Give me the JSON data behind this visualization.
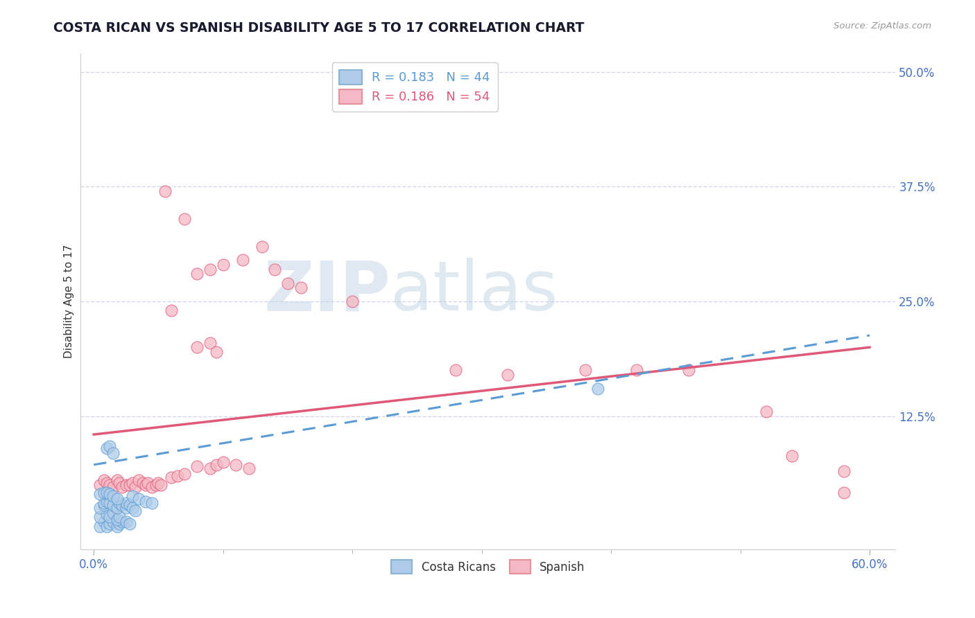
{
  "title": "COSTA RICAN VS SPANISH DISABILITY AGE 5 TO 17 CORRELATION CHART",
  "source": "Source: ZipAtlas.com",
  "xlabel_ticks_positions": [
    0.0,
    0.6
  ],
  "xlabel_ticks_labels": [
    "0.0%",
    "60.0%"
  ],
  "xlabel_minor_ticks": [
    0.1,
    0.2,
    0.3,
    0.4,
    0.5
  ],
  "ylabel": "Disability Age 5 to 17",
  "ylabel_ticks": [
    "12.5%",
    "25.0%",
    "37.5%",
    "50.0%"
  ],
  "ylabel_tick_vals": [
    0.125,
    0.25,
    0.375,
    0.5
  ],
  "xlim": [
    -0.01,
    0.62
  ],
  "ylim": [
    -0.02,
    0.52
  ],
  "cr_line_color": "#5b9bd5",
  "sp_line_color": "#e05878",
  "costa_rican_color": "#aecce8",
  "spanish_color": "#f5b8c4",
  "watermark_zip": "ZIP",
  "watermark_atlas": "atlas",
  "background_color": "#ffffff",
  "grid_color": "#d0d8e8",
  "title_color": "#1a1a2e",
  "source_color": "#999999",
  "tick_color": "#4472c4",
  "cr_line_start_y": 0.072,
  "cr_line_end_y": 0.213,
  "sp_line_start_y": 0.105,
  "sp_line_end_y": 0.2,
  "costa_rican_points": [
    [
      0.005,
      0.005
    ],
    [
      0.008,
      0.01
    ],
    [
      0.01,
      0.005
    ],
    [
      0.012,
      0.008
    ],
    [
      0.015,
      0.01
    ],
    [
      0.018,
      0.005
    ],
    [
      0.02,
      0.008
    ],
    [
      0.022,
      0.01
    ],
    [
      0.005,
      0.015
    ],
    [
      0.01,
      0.018
    ],
    [
      0.012,
      0.015
    ],
    [
      0.015,
      0.02
    ],
    [
      0.018,
      0.012
    ],
    [
      0.02,
      0.015
    ],
    [
      0.025,
      0.01
    ],
    [
      0.028,
      0.008
    ],
    [
      0.005,
      0.025
    ],
    [
      0.008,
      0.028
    ],
    [
      0.008,
      0.03
    ],
    [
      0.01,
      0.032
    ],
    [
      0.012,
      0.03
    ],
    [
      0.015,
      0.028
    ],
    [
      0.018,
      0.025
    ],
    [
      0.02,
      0.03
    ],
    [
      0.022,
      0.028
    ],
    [
      0.025,
      0.025
    ],
    [
      0.025,
      0.03
    ],
    [
      0.028,
      0.028
    ],
    [
      0.03,
      0.025
    ],
    [
      0.032,
      0.022
    ],
    [
      0.005,
      0.04
    ],
    [
      0.008,
      0.042
    ],
    [
      0.01,
      0.042
    ],
    [
      0.012,
      0.04
    ],
    [
      0.015,
      0.038
    ],
    [
      0.018,
      0.035
    ],
    [
      0.03,
      0.038
    ],
    [
      0.035,
      0.035
    ],
    [
      0.04,
      0.032
    ],
    [
      0.045,
      0.03
    ],
    [
      0.01,
      0.09
    ],
    [
      0.012,
      0.092
    ],
    [
      0.015,
      0.085
    ],
    [
      0.39,
      0.155
    ]
  ],
  "spanish_points": [
    [
      0.005,
      0.05
    ],
    [
      0.008,
      0.055
    ],
    [
      0.01,
      0.052
    ],
    [
      0.012,
      0.05
    ],
    [
      0.015,
      0.048
    ],
    [
      0.018,
      0.055
    ],
    [
      0.02,
      0.052
    ],
    [
      0.022,
      0.048
    ],
    [
      0.025,
      0.05
    ],
    [
      0.028,
      0.05
    ],
    [
      0.03,
      0.052
    ],
    [
      0.032,
      0.048
    ],
    [
      0.035,
      0.055
    ],
    [
      0.038,
      0.052
    ],
    [
      0.04,
      0.05
    ],
    [
      0.042,
      0.052
    ],
    [
      0.045,
      0.048
    ],
    [
      0.048,
      0.05
    ],
    [
      0.05,
      0.052
    ],
    [
      0.052,
      0.05
    ],
    [
      0.06,
      0.058
    ],
    [
      0.065,
      0.06
    ],
    [
      0.07,
      0.062
    ],
    [
      0.08,
      0.07
    ],
    [
      0.09,
      0.068
    ],
    [
      0.095,
      0.072
    ],
    [
      0.1,
      0.075
    ],
    [
      0.11,
      0.072
    ],
    [
      0.12,
      0.068
    ],
    [
      0.06,
      0.24
    ],
    [
      0.08,
      0.28
    ],
    [
      0.09,
      0.285
    ],
    [
      0.1,
      0.29
    ],
    [
      0.115,
      0.295
    ],
    [
      0.13,
      0.31
    ],
    [
      0.14,
      0.285
    ],
    [
      0.15,
      0.27
    ],
    [
      0.16,
      0.265
    ],
    [
      0.2,
      0.25
    ],
    [
      0.055,
      0.37
    ],
    [
      0.07,
      0.34
    ],
    [
      0.08,
      0.2
    ],
    [
      0.09,
      0.205
    ],
    [
      0.095,
      0.195
    ],
    [
      0.28,
      0.175
    ],
    [
      0.32,
      0.17
    ],
    [
      0.38,
      0.175
    ],
    [
      0.42,
      0.175
    ],
    [
      0.46,
      0.175
    ],
    [
      0.52,
      0.13
    ],
    [
      0.54,
      0.082
    ],
    [
      0.58,
      0.065
    ],
    [
      0.58,
      0.042
    ]
  ]
}
